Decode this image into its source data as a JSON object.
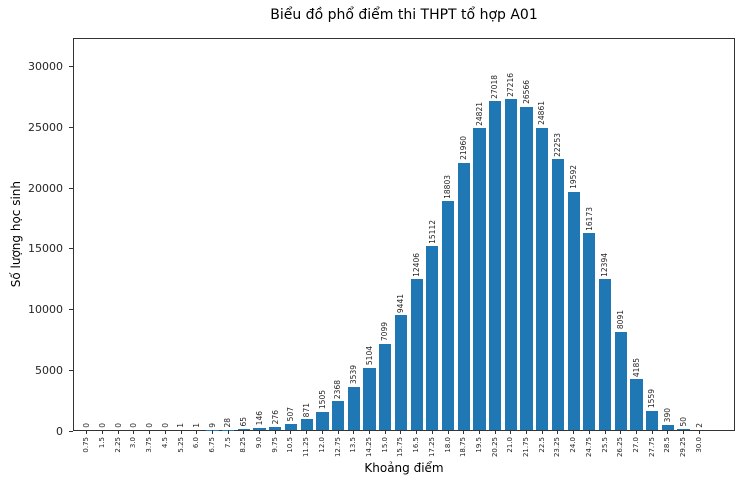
{
  "chart_data": {
    "type": "bar",
    "title": "Biểu đồ phổ điểm thi THPT tổ hợp A01",
    "xlabel": "Khoảng điểm",
    "ylabel": "Số lượng học sinh",
    "categories": [
      "0.75",
      "1.5",
      "2.25",
      "3.0",
      "3.75",
      "4.5",
      "5.25",
      "6.0",
      "6.75",
      "7.5",
      "8.25",
      "9.0",
      "9.75",
      "10.5",
      "11.25",
      "12.0",
      "12.75",
      "13.5",
      "14.25",
      "15.0",
      "15.75",
      "16.5",
      "17.25",
      "18.0",
      "18.75",
      "19.5",
      "20.25",
      "21.0",
      "21.75",
      "22.5",
      "23.25",
      "24.0",
      "24.75",
      "25.5",
      "26.25",
      "27.0",
      "27.75",
      "28.5",
      "29.25",
      "30.0"
    ],
    "values": [
      0,
      0,
      0,
      0,
      0,
      0,
      1,
      1,
      9,
      28,
      65,
      146,
      276,
      507,
      871,
      1505,
      2368,
      3539,
      5104,
      7099,
      9441,
      12406,
      15112,
      18803,
      21960,
      24821,
      27018,
      27216,
      26566,
      24861,
      22253,
      19592,
      16173,
      12394,
      8091,
      4185,
      1559,
      390,
      50,
      2
    ],
    "yticks": [
      0,
      5000,
      10000,
      15000,
      20000,
      25000,
      30000
    ],
    "ylim": [
      0,
      32300
    ],
    "bar_color": "#1f77b4",
    "bar_labels": true,
    "grid": false,
    "legend": false
  }
}
